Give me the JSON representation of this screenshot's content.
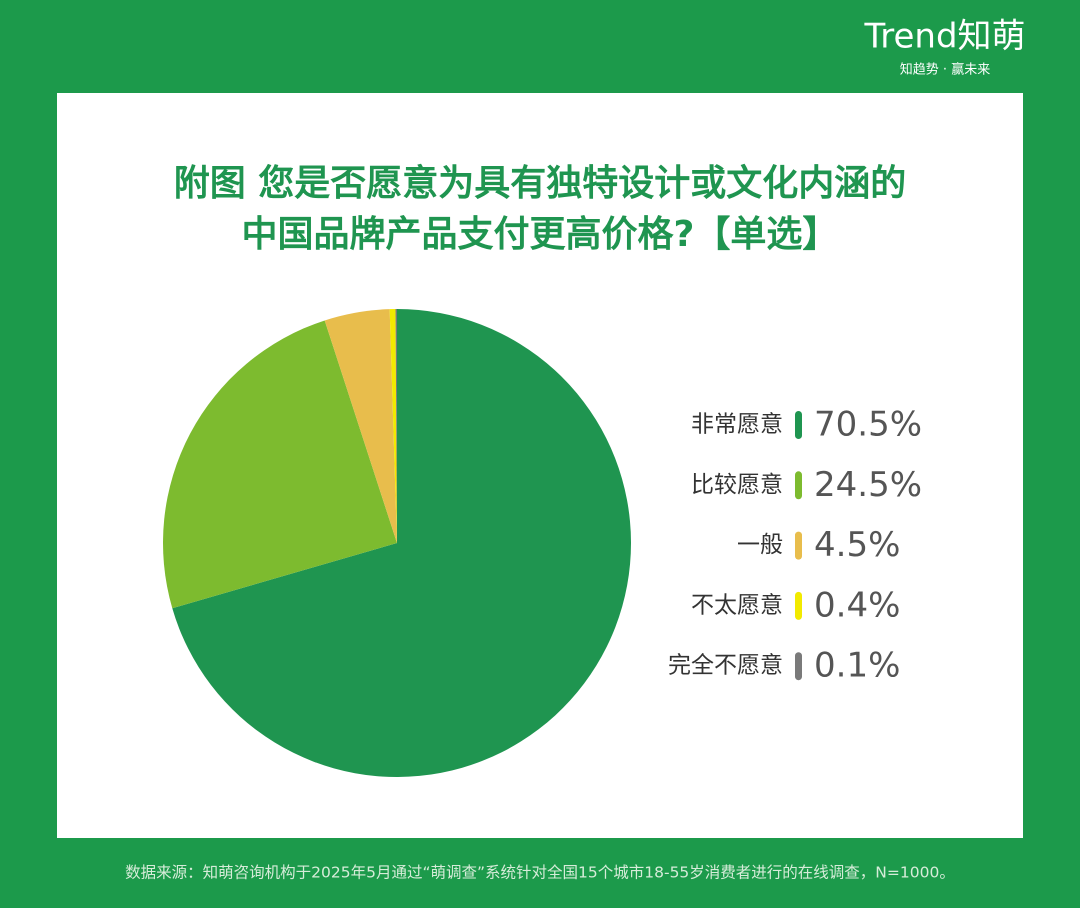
{
  "logo": "Trend知萌",
  "tagline": "知趋势 · 赢未来",
  "source": "数据来源：知萌咨询机构于2025年5月通过“萌调查”系统针对全国15个城市18-55岁消费者进行的在线调查，N=1000。",
  "chart_data": {
    "type": "pie",
    "title": [
      "附图 您是否愿意为具有独特设计或文化内涵的",
      "中国品牌产品支付更高价格?【单选】"
    ],
    "categories": [
      "非常愿意",
      "比较愿意",
      "一般",
      "不太愿意",
      "完全不愿意"
    ],
    "values": [
      70.5,
      24.5,
      4.5,
      0.4,
      0.1
    ],
    "value_labels": [
      "70.5%",
      "24.5%",
      "4.5%",
      "0.4%",
      "0.1%"
    ],
    "colors": [
      "#1f9550",
      "#7dbb2f",
      "#e8bd4c",
      "#f2ea00",
      "#7a7a7a"
    ]
  }
}
